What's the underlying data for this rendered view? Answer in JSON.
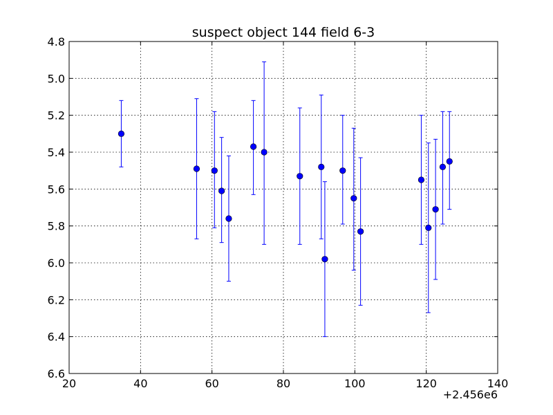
{
  "chart_data": {
    "type": "scatter",
    "title": "suspect object 144 field 6-3",
    "xlabel": "",
    "ylabel": "",
    "x_offset_label": "+2.456e6",
    "xlim": [
      20,
      140
    ],
    "ylim": [
      4.8,
      6.6
    ],
    "y_inverted": true,
    "x_ticks": [
      20,
      40,
      60,
      80,
      100,
      120,
      140
    ],
    "y_ticks": [
      4.8,
      5.0,
      5.2,
      5.4,
      5.6,
      5.8,
      6.0,
      6.2,
      6.4,
      6.6
    ],
    "x_tick_labels": [
      "20",
      "40",
      "60",
      "80",
      "100",
      "120",
      "140"
    ],
    "y_tick_labels": [
      "4.8",
      "5.0",
      "5.2",
      "5.4",
      "5.6",
      "5.8",
      "6.0",
      "6.2",
      "6.4",
      "6.6"
    ],
    "grid": true,
    "marker_color": "#0000ff",
    "points": [
      {
        "x": 34.6,
        "y": 5.3,
        "low": 5.12,
        "high": 5.48
      },
      {
        "x": 55.7,
        "y": 5.49,
        "low": 5.11,
        "high": 5.87
      },
      {
        "x": 60.7,
        "y": 5.5,
        "low": 5.18,
        "high": 5.81
      },
      {
        "x": 62.7,
        "y": 5.61,
        "low": 5.32,
        "high": 5.89
      },
      {
        "x": 64.7,
        "y": 5.76,
        "low": 5.42,
        "high": 6.1
      },
      {
        "x": 71.6,
        "y": 5.37,
        "low": 5.12,
        "high": 5.63
      },
      {
        "x": 74.6,
        "y": 5.4,
        "low": 4.91,
        "high": 5.9
      },
      {
        "x": 84.6,
        "y": 5.53,
        "low": 5.16,
        "high": 5.9
      },
      {
        "x": 90.6,
        "y": 5.48,
        "low": 5.09,
        "high": 5.87
      },
      {
        "x": 91.6,
        "y": 5.98,
        "low": 5.56,
        "high": 6.4
      },
      {
        "x": 96.6,
        "y": 5.5,
        "low": 5.2,
        "high": 5.79
      },
      {
        "x": 99.7,
        "y": 5.65,
        "low": 5.27,
        "high": 6.04
      },
      {
        "x": 101.6,
        "y": 5.83,
        "low": 5.43,
        "high": 6.23
      },
      {
        "x": 118.6,
        "y": 5.55,
        "low": 5.2,
        "high": 5.9
      },
      {
        "x": 120.6,
        "y": 5.81,
        "low": 5.35,
        "high": 6.27
      },
      {
        "x": 122.6,
        "y": 5.71,
        "low": 5.33,
        "high": 6.09
      },
      {
        "x": 124.6,
        "y": 5.48,
        "low": 5.18,
        "high": 5.79
      },
      {
        "x": 126.5,
        "y": 5.45,
        "low": 5.18,
        "high": 5.71
      }
    ]
  }
}
